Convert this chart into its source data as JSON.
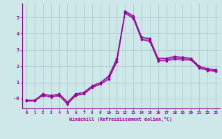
{
  "x": [
    0,
    1,
    2,
    3,
    4,
    5,
    6,
    7,
    8,
    9,
    10,
    11,
    12,
    13,
    14,
    15,
    16,
    17,
    18,
    19,
    20,
    21,
    22,
    23
  ],
  "lines": [
    [
      -0.1,
      -0.1,
      0.3,
      0.2,
      0.3,
      -0.2,
      0.3,
      0.4,
      0.8,
      1.0,
      1.4,
      2.5,
      5.4,
      5.1,
      3.8,
      3.7,
      2.5,
      2.5,
      2.6,
      2.55,
      2.5,
      2.0,
      1.85,
      1.8
    ],
    [
      -0.1,
      -0.1,
      0.28,
      0.18,
      0.28,
      -0.22,
      0.28,
      0.38,
      0.78,
      0.98,
      1.35,
      2.42,
      5.36,
      5.06,
      3.76,
      3.66,
      2.45,
      2.45,
      2.55,
      2.5,
      2.47,
      1.97,
      1.82,
      1.77
    ],
    [
      -0.12,
      -0.12,
      0.22,
      0.12,
      0.22,
      -0.3,
      0.22,
      0.32,
      0.72,
      0.92,
      1.25,
      2.32,
      5.3,
      4.98,
      3.68,
      3.58,
      2.38,
      2.38,
      2.48,
      2.44,
      2.42,
      1.92,
      1.77,
      1.72
    ],
    [
      -0.15,
      -0.15,
      0.18,
      0.08,
      0.18,
      -0.35,
      0.18,
      0.28,
      0.68,
      0.88,
      1.18,
      2.25,
      5.25,
      4.92,
      3.62,
      3.52,
      2.32,
      2.32,
      2.42,
      2.38,
      2.38,
      1.88,
      1.73,
      1.68
    ]
  ],
  "line_color": "#990099",
  "bg_color": "#cce8e8",
  "grid_color": "#b0c8c8",
  "xlabel": "Windchill (Refroidissement éolien,°C)",
  "xlim": [
    -0.5,
    23.5
  ],
  "ylim": [
    -0.6,
    5.9
  ],
  "yticks": [
    0,
    1,
    2,
    3,
    4,
    5
  ],
  "ytick_labels": [
    "-0",
    "1",
    "2",
    "3",
    "4",
    "5"
  ],
  "xticks": [
    0,
    1,
    2,
    3,
    4,
    5,
    6,
    7,
    8,
    9,
    10,
    11,
    12,
    13,
    14,
    15,
    16,
    17,
    18,
    19,
    20,
    21,
    22,
    23
  ]
}
